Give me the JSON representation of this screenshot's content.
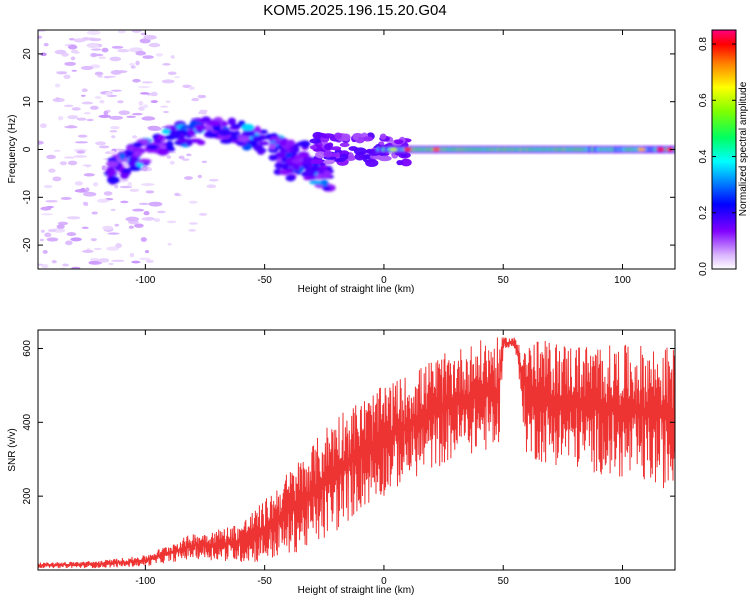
{
  "title": "KOM5.2025.196.15.20.G04",
  "colorbar": {
    "label": "Normalized spectral amplitude",
    "ticks": [
      "0.0",
      "0.2",
      "0.4",
      "0.6",
      "0.8"
    ],
    "range": [
      0,
      0.85
    ],
    "colormap": "rainbow"
  },
  "chart_data": [
    {
      "type": "heatmap",
      "xlabel": "Height of straight line (km)",
      "ylabel": "Frequency (Hz)",
      "xlim": [
        -145,
        122
      ],
      "ylim": [
        -25,
        25
      ],
      "xticks": [
        -100,
        -50,
        0,
        50,
        100
      ],
      "yticks": [
        -20,
        -10,
        0,
        10,
        20
      ],
      "xtick_labels": [
        "-100",
        "-50",
        "0",
        "50",
        "100"
      ],
      "ytick_labels": [
        "-20",
        "-10",
        "0",
        "10",
        "20"
      ],
      "grid": false,
      "features": {
        "main_band": {
          "x_range": [
            0,
            122
          ],
          "frequency_hz": 0,
          "amplitude": [
            0.3,
            0.85
          ]
        },
        "curved_branch": {
          "x_range": [
            -115,
            -25
          ],
          "frequency_hz_peak": 4,
          "amplitude": [
            0.05,
            0.3
          ]
        },
        "scattered_noise": {
          "x_range": [
            -145,
            -100
          ],
          "frequency_hz_range": [
            -25,
            25
          ],
          "amplitude": [
            0.0,
            0.05
          ]
        }
      }
    },
    {
      "type": "line",
      "xlabel": "Height of straight line (km)",
      "ylabel": "SNR (v/v)",
      "xlim": [
        -145,
        122
      ],
      "ylim": [
        0,
        650
      ],
      "xticks": [
        -100,
        -50,
        0,
        50,
        100
      ],
      "yticks": [
        200,
        400,
        600
      ],
      "xtick_labels": [
        "-100",
        "-50",
        "0",
        "50",
        "100"
      ],
      "ytick_labels": [
        "200",
        "400",
        "600"
      ],
      "grid": false,
      "series": [
        {
          "color": "#ee3333",
          "envelope_x": [
            -145,
            -120,
            -100,
            -90,
            -80,
            -70,
            -60,
            -50,
            -40,
            -30,
            -20,
            -10,
            0,
            10,
            20,
            30,
            40,
            44,
            46,
            48,
            50,
            55,
            60,
            70,
            80,
            90,
            100,
            110,
            122
          ],
          "envelope_min": [
            5,
            5,
            10,
            20,
            30,
            25,
            20,
            20,
            40,
            60,
            100,
            160,
            200,
            240,
            270,
            300,
            320,
            320,
            320,
            310,
            600,
            600,
            300,
            285,
            275,
            260,
            245,
            230,
            215
          ],
          "envelope_max": [
            20,
            25,
            40,
            70,
            100,
            110,
            130,
            190,
            270,
            340,
            430,
            460,
            500,
            530,
            570,
            600,
            620,
            635,
            630,
            630,
            630,
            630,
            625,
            620,
            615,
            610,
            610,
            610,
            605
          ]
        }
      ]
    }
  ]
}
